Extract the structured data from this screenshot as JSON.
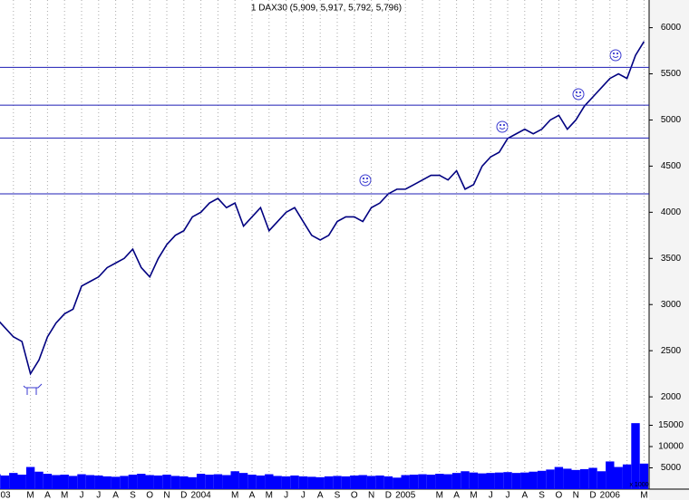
{
  "chart_data": {
    "type": "line",
    "title": "1 DAX30 (5,909, 5,917, 5,792, 5,796)",
    "categories": [
      "03",
      null,
      null,
      null,
      "M",
      null,
      "A",
      null,
      "M",
      null,
      "J",
      null,
      "J",
      null,
      "A",
      null,
      "S",
      null,
      "O",
      null,
      "N",
      null,
      "D",
      null,
      "2004",
      null,
      null,
      null,
      "M",
      null,
      "A",
      null,
      "M",
      null,
      "J",
      null,
      "J",
      null,
      "A",
      null,
      "S",
      null,
      "O",
      null,
      "N",
      null,
      "D",
      null,
      "2005",
      null,
      null,
      null,
      "M",
      null,
      "A",
      null,
      "M",
      null,
      "J",
      null,
      "J",
      null,
      "A",
      null,
      "S",
      null,
      "O",
      null,
      "N",
      null,
      "D",
      null,
      "2006",
      null,
      null,
      null,
      "M"
    ],
    "values": [
      2850,
      2750,
      2650,
      2600,
      2250,
      2400,
      2650,
      2800,
      2900,
      2950,
      3200,
      3250,
      3300,
      3400,
      3450,
      3500,
      3600,
      3400,
      3300,
      3500,
      3650,
      3750,
      3800,
      3950,
      4000,
      4100,
      4150,
      4050,
      4100,
      3850,
      3950,
      4050,
      3800,
      3900,
      4000,
      4050,
      3900,
      3750,
      3700,
      3750,
      3900,
      3950,
      3950,
      3900,
      4050,
      4100,
      4200,
      4250,
      4250,
      4300,
      4350,
      4400,
      4400,
      4350,
      4450,
      4250,
      4300,
      4500,
      4600,
      4650,
      4800,
      4850,
      4900,
      4850,
      4900,
      5000,
      5050,
      4900,
      5000,
      5150,
      5250,
      5350,
      5450,
      5500,
      5450,
      5700,
      5850
    ],
    "color": "#000080",
    "ylim": [
      1000,
      6300
    ],
    "yticks": [
      2000,
      2500,
      3000,
      3500,
      4000,
      4500,
      5000,
      5500,
      6000
    ],
    "hlines": {
      "values": [
        5570,
        5160,
        4805,
        4200
      ],
      "color": "#1c1cb4"
    },
    "volume": {
      "values": [
        3500,
        3200,
        3800,
        3400,
        5200,
        4100,
        3600,
        3300,
        3400,
        3100,
        3500,
        3300,
        3200,
        3000,
        2900,
        3100,
        3400,
        3600,
        3300,
        3200,
        3400,
        3100,
        3000,
        2800,
        3600,
        3400,
        3500,
        3300,
        4200,
        3800,
        3400,
        3200,
        3500,
        3100,
        3000,
        3200,
        3000,
        2900,
        2800,
        3000,
        3100,
        3000,
        3200,
        3300,
        3100,
        3200,
        3000,
        2700,
        3300,
        3400,
        3500,
        3400,
        3600,
        3500,
        3800,
        4200,
        3900,
        3700,
        3800,
        3900,
        4000,
        3800,
        3900,
        4100,
        4300,
        4600,
        5200,
        4800,
        4500,
        4700,
        5000,
        4200,
        6500,
        5200,
        5800,
        15500,
        6000
      ],
      "color": "#0000ff",
      "ylim": [
        0,
        20000
      ],
      "yticks": [
        5000,
        10000,
        15000
      ],
      "label": "x 1000"
    }
  }
}
